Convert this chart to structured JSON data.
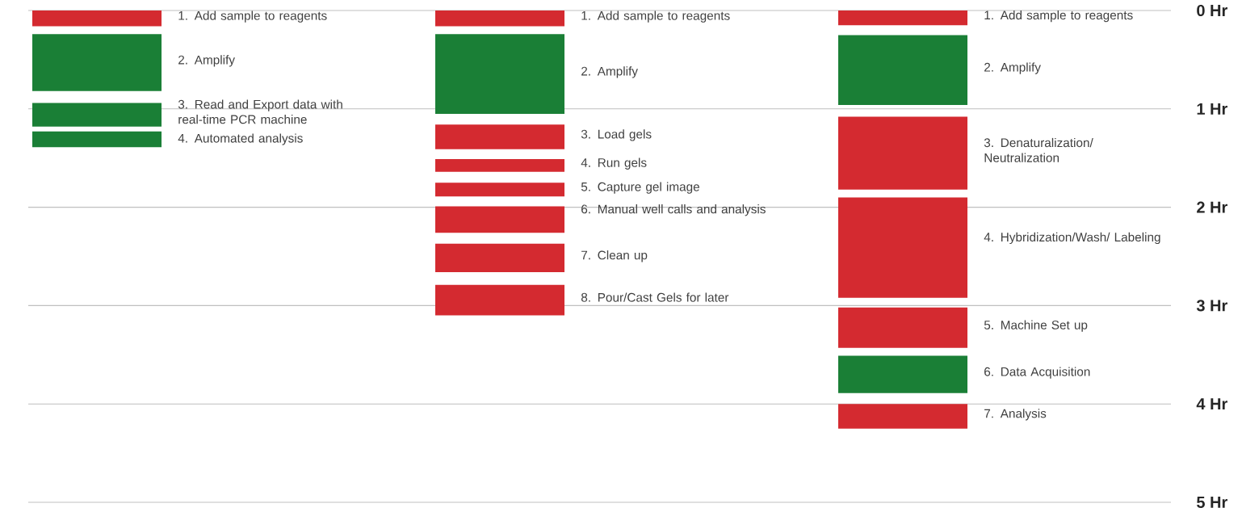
{
  "chart_data": {
    "type": "bar",
    "categories": [
      null,
      null,
      null
    ],
    "series": [
      {
        "name": "1. Add sample to reagents",
        "color": "#d42a30",
        "base": [
          0,
          null,
          null
        ],
        "values": [
          0.16,
          null,
          null
        ]
      },
      {
        "name": "2. Amplify",
        "color": "#1a7f36",
        "base": [
          0.24,
          null,
          null
        ],
        "values": [
          0.58,
          null,
          null
        ]
      },
      {
        "name": "3. Read and Export data with real-time PCR machine",
        "color": "#1a7f36",
        "base": [
          0.94,
          null,
          null
        ],
        "values": [
          0.24,
          null,
          null
        ]
      },
      {
        "name": "4. Automated analysis",
        "color": "#1a7f36",
        "base": [
          1.23,
          null,
          null
        ],
        "values": [
          0.16,
          null,
          null
        ]
      },
      {
        "name": "1. Add sample to reagents",
        "color": "#d42a30",
        "base": [
          null,
          0,
          null
        ],
        "values": [
          null,
          0.16,
          null
        ]
      },
      {
        "name": "2. Amplify",
        "color": "#1a7f36",
        "base": [
          null,
          0.24,
          null
        ],
        "values": [
          null,
          0.81,
          null
        ]
      },
      {
        "name": "3. Load gels",
        "color": "#d42a30",
        "base": [
          null,
          1.16,
          null
        ],
        "values": [
          null,
          0.25,
          null
        ]
      },
      {
        "name": "4. Run gels",
        "color": "#d42a30",
        "base": [
          null,
          1.51,
          null
        ],
        "values": [
          null,
          0.13,
          null
        ]
      },
      {
        "name": "5. Capture gel image",
        "color": "#d42a30",
        "base": [
          null,
          1.75,
          null
        ],
        "values": [
          null,
          0.14,
          null
        ]
      },
      {
        "name": "6. Manual well calls and analysis",
        "color": "#d42a30",
        "base": [
          null,
          1.99,
          null
        ],
        "values": [
          null,
          0.27,
          null
        ]
      },
      {
        "name": "7. Clean up",
        "color": "#d42a30",
        "base": [
          null,
          2.37,
          null
        ],
        "values": [
          null,
          0.29,
          null
        ]
      },
      {
        "name": "8. Pour/Cast Gels for later",
        "color": "#d42a30",
        "base": [
          null,
          2.79,
          null
        ],
        "values": [
          null,
          0.31,
          null
        ]
      },
      {
        "name": "1. Add sample to reagents",
        "color": "#d42a30",
        "base": [
          null,
          null,
          0
        ],
        "values": [
          null,
          null,
          0.15
        ]
      },
      {
        "name": "2. Amplify",
        "color": "#1a7f36",
        "base": [
          null,
          null,
          0.25
        ],
        "values": [
          null,
          null,
          0.71
        ]
      },
      {
        "name": "3. Denaturalization/ Neutralization",
        "color": "#d42a30",
        "base": [
          null,
          null,
          1.08
        ],
        "values": [
          null,
          null,
          0.74
        ]
      },
      {
        "name": "4. Hybridization/Wash/ Labeling",
        "color": "#d42a30",
        "base": [
          null,
          null,
          1.9
        ],
        "values": [
          null,
          null,
          1.02
        ]
      },
      {
        "name": "5. Machine Set up",
        "color": "#d42a30",
        "base": [
          null,
          null,
          3.02
        ],
        "values": [
          null,
          null,
          0.41
        ]
      },
      {
        "name": "6. Data Acquisition",
        "color": "#1a7f36",
        "base": [
          null,
          null,
          3.51
        ],
        "values": [
          null,
          null,
          0.38
        ]
      },
      {
        "name": "7. Analysis",
        "color": "#d42a30",
        "base": [
          null,
          null,
          4.0
        ],
        "values": [
          null,
          null,
          0.25
        ]
      }
    ],
    "ylim": [
      5,
      0
    ],
    "yticks": [
      {
        "value": 0,
        "label": "0 Hr"
      },
      {
        "value": 1,
        "label": "1 Hr"
      },
      {
        "value": 2,
        "label": "2 Hr"
      },
      {
        "value": 3,
        "label": "3 Hr"
      },
      {
        "value": 4,
        "label": "4 Hr"
      },
      {
        "value": 5,
        "label": "5 Hr"
      }
    ],
    "grid": "y",
    "tick_labels": "y"
  }
}
